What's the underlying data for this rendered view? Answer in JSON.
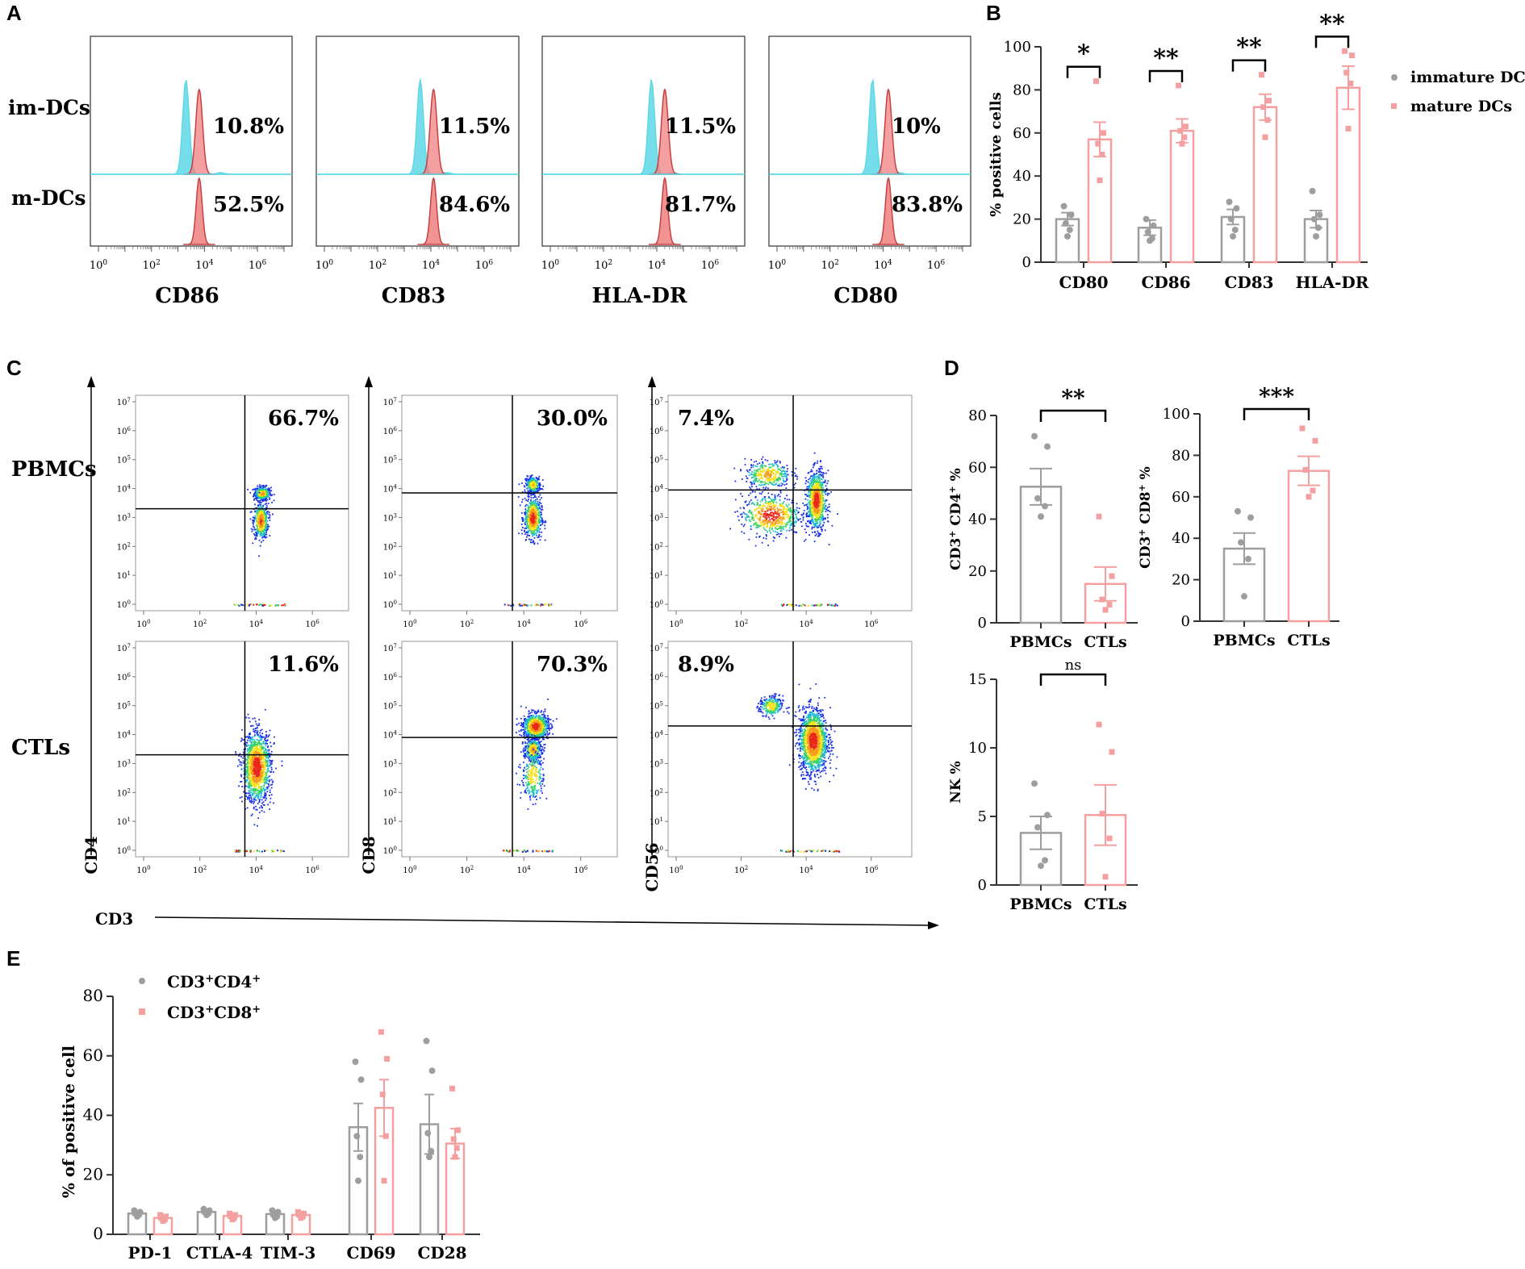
{
  "figure": {
    "panel_letters": [
      "A",
      "B",
      "C",
      "D",
      "E"
    ],
    "panel_c_xlabel": "CD3"
  },
  "chart_data": [
    {
      "panel": "A",
      "type": "histogram",
      "row_labels": [
        "im-DCs",
        "m-DCs"
      ],
      "x_tick_labels": [
        {
          "base": "10",
          "exp": "0"
        },
        {
          "base": "10",
          "exp": "2"
        },
        {
          "base": "10",
          "exp": "4"
        },
        {
          "base": "10",
          "exp": "6"
        }
      ],
      "histograms": [
        {
          "marker": "CD86",
          "immature_pct": "10.8%",
          "mature_pct": "52.5%",
          "immature_peak_log": 3.3,
          "mature_peak_log": 3.8
        },
        {
          "marker": "CD83",
          "immature_pct": "11.5%",
          "mature_pct": "84.6%",
          "immature_peak_log": 3.6,
          "mature_peak_log": 4.1
        },
        {
          "marker": "HLA-DR",
          "immature_pct": "11.5%",
          "mature_pct": "81.7%",
          "immature_peak_log": 3.8,
          "mature_peak_log": 4.3
        },
        {
          "marker": "CD80",
          "immature_pct": "10%",
          "mature_pct": "83.8%",
          "immature_peak_log": 3.6,
          "mature_peak_log": 4.2
        }
      ],
      "colors": {
        "immature": "#5ed8e6",
        "mature": "#f08080"
      }
    },
    {
      "panel": "B",
      "type": "bar",
      "ylabel": "% positive cells",
      "ylim": [
        0,
        100
      ],
      "yticks": [
        0,
        20,
        40,
        60,
        80,
        100
      ],
      "categories": [
        "CD80",
        "CD86",
        "CD83",
        "HLA-DR"
      ],
      "series": [
        {
          "name": "immature DCs",
          "color": "#9e9e9e",
          "values": [
            20,
            16,
            21,
            20
          ],
          "sem": [
            3,
            3.5,
            3.5,
            4
          ],
          "points": [
            [
              26,
              22,
              18,
              15,
              12
            ],
            [
              20,
              17,
              14,
              11,
              10
            ],
            [
              28,
              25,
              20,
              15,
              12
            ],
            [
              33,
              22,
              20,
              16,
              12
            ]
          ]
        },
        {
          "name": "mature DCs",
          "color": "#f4a0a0",
          "values": [
            57,
            61,
            72,
            81
          ],
          "sem": [
            8,
            5.5,
            6,
            10
          ],
          "points": [
            [
              84,
              60,
              55,
              50,
              38
            ],
            [
              82,
              63,
              61,
              58,
              55
            ],
            [
              87,
              75,
              72,
              66,
              58
            ],
            [
              98,
              96,
              88,
              83,
              62
            ]
          ]
        }
      ],
      "significance": [
        "*",
        "**",
        "**",
        "**"
      ],
      "legend_position": "top-right"
    },
    {
      "panel": "C",
      "type": "scatter",
      "row_labels": [
        "PBMCs",
        "CTLs"
      ],
      "x_marker": "CD3",
      "y_markers": [
        "CD4",
        "CD8",
        "CD56"
      ],
      "x_tick_labels": [
        {
          "base": "10",
          "exp": "0"
        },
        {
          "base": "10",
          "exp": "2"
        },
        {
          "base": "10",
          "exp": "4"
        },
        {
          "base": "10",
          "exp": "6"
        }
      ],
      "y_tick_labels": [
        {
          "base": "10",
          "exp": "0"
        },
        {
          "base": "10",
          "exp": "1"
        },
        {
          "base": "10",
          "exp": "2"
        },
        {
          "base": "10",
          "exp": "3"
        },
        {
          "base": "10",
          "exp": "4"
        },
        {
          "base": "10",
          "exp": "5"
        },
        {
          "base": "10",
          "exp": "6"
        },
        {
          "base": "10",
          "exp": "7"
        }
      ],
      "plots": [
        {
          "row": "PBMCs",
          "marker": "CD4",
          "gate_x": 3.6,
          "gate_y": 3.3,
          "label": "66.7%",
          "label_side": "right",
          "clusters": [
            {
              "x": 4.2,
              "y": 3.85,
              "sx": 0.15,
              "sy": 0.12,
              "n": 350
            },
            {
              "x": 4.15,
              "y": 2.9,
              "sx": 0.13,
              "sy": 0.3,
              "n": 500
            }
          ]
        },
        {
          "row": "PBMCs",
          "marker": "CD8",
          "gate_x": 3.6,
          "gate_y": 3.85,
          "label": "30.0%",
          "label_side": "right",
          "clusters": [
            {
              "x": 4.3,
              "y": 4.15,
              "sx": 0.13,
              "sy": 0.14,
              "n": 300
            },
            {
              "x": 4.3,
              "y": 3.0,
              "sx": 0.15,
              "sy": 0.35,
              "n": 650
            }
          ]
        },
        {
          "row": "PBMCs",
          "marker": "CD56",
          "gate_x": 3.6,
          "gate_y": 3.95,
          "label": "7.4%",
          "label_side": "left",
          "clusters": [
            {
              "x": 2.9,
              "y": 3.1,
              "sx": 0.45,
              "sy": 0.35,
              "n": 600
            },
            {
              "x": 2.8,
              "y": 4.5,
              "sx": 0.35,
              "sy": 0.25,
              "n": 350
            },
            {
              "x": 4.3,
              "y": 3.6,
              "sx": 0.15,
              "sy": 0.5,
              "n": 900
            }
          ]
        },
        {
          "row": "CTLs",
          "marker": "CD4",
          "gate_x": 3.6,
          "gate_y": 3.3,
          "label": "11.6%",
          "label_side": "right",
          "clusters": [
            {
              "x": 4.0,
              "y": 2.9,
              "sx": 0.25,
              "sy": 0.6,
              "n": 1300
            }
          ]
        },
        {
          "row": "CTLs",
          "marker": "CD8",
          "gate_x": 3.6,
          "gate_y": 3.9,
          "label": "70.3%",
          "label_side": "right",
          "clusters": [
            {
              "x": 4.4,
              "y": 4.3,
              "sx": 0.22,
              "sy": 0.22,
              "n": 900
            },
            {
              "x": 4.3,
              "y": 3.5,
              "sx": 0.15,
              "sy": 0.2,
              "n": 350
            },
            {
              "x": 4.3,
              "y": 2.6,
              "sx": 0.2,
              "sy": 0.45,
              "n": 250
            }
          ]
        },
        {
          "row": "CTLs",
          "marker": "CD56",
          "gate_x": 3.6,
          "gate_y": 4.3,
          "label": "8.9%",
          "label_side": "left",
          "clusters": [
            {
              "x": 2.9,
              "y": 5.0,
              "sx": 0.18,
              "sy": 0.18,
              "n": 250
            },
            {
              "x": 4.2,
              "y": 3.8,
              "sx": 0.22,
              "sy": 0.55,
              "n": 1500
            }
          ]
        }
      ]
    },
    {
      "panel": "D",
      "type": "bar",
      "charts": [
        {
          "ylabel_parts": [
            {
              "t": "CD3"
            },
            {
              "t": "+",
              "sup": true
            },
            {
              "t": " CD4"
            },
            {
              "t": "+",
              "sup": true
            },
            {
              "t": " %"
            }
          ],
          "ylim": [
            0,
            80
          ],
          "yticks": [
            0,
            20,
            40,
            60,
            80
          ],
          "categories": [
            "PBMCs",
            "CTLs"
          ],
          "values": [
            52.5,
            15
          ],
          "sem": [
            7,
            6.5
          ],
          "significance": "**",
          "points": [
            [
              72,
              68,
              48,
              45,
              41
            ],
            [
              41,
              18,
              9,
              7,
              5
            ]
          ]
        },
        {
          "ylabel_parts": [
            {
              "t": "CD3"
            },
            {
              "t": "+",
              "sup": true
            },
            {
              "t": " CD8"
            },
            {
              "t": "+",
              "sup": true
            },
            {
              "t": " %"
            }
          ],
          "ylim": [
            0,
            100
          ],
          "yticks": [
            0,
            20,
            40,
            60,
            80,
            100
          ],
          "categories": [
            "PBMCs",
            "CTLs"
          ],
          "values": [
            35,
            72.5
          ],
          "sem": [
            7.5,
            7
          ],
          "significance": "***",
          "points": [
            [
              53,
              50,
              38,
              30,
              12
            ],
            [
              93,
              87,
              73,
              63,
              60
            ]
          ]
        },
        {
          "ylabel_parts": [
            {
              "t": "NK %"
            }
          ],
          "ylim": [
            0,
            15
          ],
          "yticks": [
            0,
            5,
            10,
            15
          ],
          "categories": [
            "PBMCs",
            "CTLs"
          ],
          "values": [
            3.8,
            5.1
          ],
          "sem": [
            1.2,
            2.2
          ],
          "significance": "ns",
          "points": [
            [
              7.4,
              5.1,
              4.2,
              1.8,
              1.4
            ],
            [
              11.7,
              9.7,
              5.2,
              3.4,
              0.6
            ]
          ]
        }
      ],
      "colors": [
        "#9e9e9e",
        "#f4a0a0"
      ]
    },
    {
      "panel": "E",
      "type": "bar",
      "ylabel": "% of positive cell",
      "ylim": [
        0,
        80
      ],
      "yticks": [
        0,
        20,
        40,
        60,
        80
      ],
      "categories": [
        "PD-1",
        "CTLA-4",
        "TIM-3",
        "CD69",
        "CD28"
      ],
      "series": [
        {
          "name_parts": [
            {
              "t": "CD3"
            },
            {
              "t": "+",
              "sup": true
            },
            {
              "t": "CD4"
            },
            {
              "t": "+",
              "sup": true
            }
          ],
          "color": "#9e9e9e",
          "values": [
            7,
            7.5,
            6.8,
            36,
            37
          ],
          "sem": [
            0.6,
            0.6,
            0.7,
            8,
            10
          ],
          "points": [
            [
              8,
              7.5,
              7,
              6.5,
              6
            ],
            [
              8.5,
              8,
              7.5,
              7,
              6.5
            ],
            [
              8,
              7.5,
              6.5,
              6,
              5.5
            ],
            [
              58,
              52,
              33,
              26,
              18
            ],
            [
              65,
              55,
              34,
              28,
              26
            ]
          ]
        },
        {
          "name_parts": [
            {
              "t": "CD3"
            },
            {
              "t": "+",
              "sup": true
            },
            {
              "t": "CD8"
            },
            {
              "t": "+",
              "sup": true
            }
          ],
          "color": "#f4a0a0",
          "values": [
            5.5,
            6.2,
            6.5,
            42.5,
            30.5
          ],
          "sem": [
            0.5,
            0.6,
            0.5,
            9.5,
            5
          ],
          "points": [
            [
              6.5,
              6,
              5.5,
              5,
              4.5
            ],
            [
              7,
              6.5,
              6,
              5.5,
              5
            ],
            [
              7.5,
              7,
              6.5,
              6,
              5.5
            ],
            [
              68,
              59,
              47,
              33,
              18
            ],
            [
              49,
              35,
              32,
              29,
              26
            ]
          ]
        }
      ],
      "legend_position": "top-left"
    }
  ]
}
